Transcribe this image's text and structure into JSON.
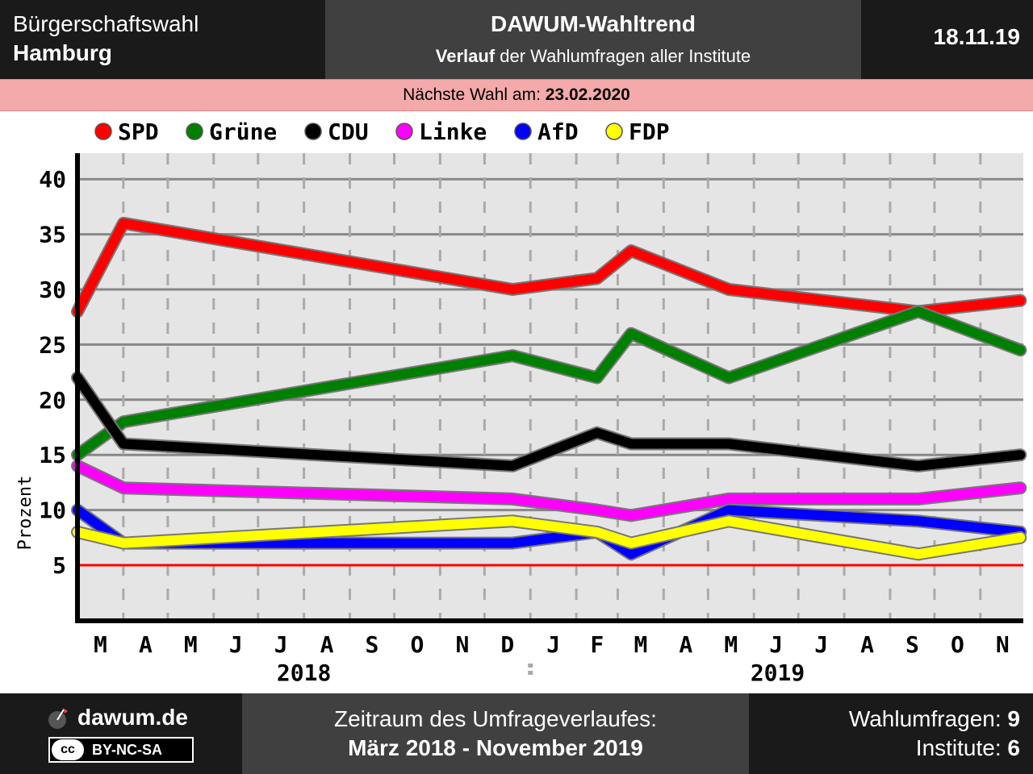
{
  "header": {
    "left_line1": "Bürgerschaftswahl",
    "left_line2": "Hamburg",
    "title": "DAWUM-Wahltrend",
    "subtitle_bold": "Verlauf",
    "subtitle_rest": " der Wahlumfragen aller Institute",
    "date": "18.11.19"
  },
  "next_election": {
    "label": "Nächste Wahl am: ",
    "date": "23.02.2020"
  },
  "footer": {
    "site": "dawum.de",
    "license": "BY-NC-SA",
    "license_icon": "cc",
    "period_label": "Zeitraum des Umfrageverlaufes:",
    "period": "März 2018 - November 2019",
    "polls_label": "Wahlumfragen: ",
    "polls_count": "9",
    "institutes_label": "Institute: ",
    "institutes_count": "6"
  },
  "chart_data": {
    "type": "line",
    "ylabel": "Prozent",
    "ylim": [
      0,
      42
    ],
    "yticks": [
      5,
      10,
      15,
      20,
      25,
      30,
      35,
      40
    ],
    "threshold": 5,
    "threshold_color": "#ff0000",
    "grid": true,
    "legend_position": "top",
    "x_range": [
      "2018-03-01",
      "2019-11-30"
    ],
    "months": [
      "M",
      "A",
      "M",
      "J",
      "J",
      "A",
      "S",
      "O",
      "N",
      "D",
      "J",
      "F",
      "M",
      "A",
      "M",
      "J",
      "J",
      "A",
      "S",
      "O",
      "N"
    ],
    "years": [
      {
        "label": "2018",
        "start_index": 0,
        "end_index": 9
      },
      {
        "label": "2019",
        "start_index": 10,
        "end_index": 20
      }
    ],
    "x": [
      "2018-03-01",
      "2018-04-01",
      "2018-12-20",
      "2019-02-15",
      "2019-03-10",
      "2019-05-15",
      "2019-09-20",
      "2019-11-28"
    ],
    "series": [
      {
        "name": "SPD",
        "color": "#ff0000",
        "values": [
          28,
          36,
          30,
          31,
          33.5,
          30,
          28,
          29
        ]
      },
      {
        "name": "Grüne",
        "color": "#008000",
        "values": [
          15,
          18,
          24,
          22,
          26,
          22,
          28,
          24.5
        ]
      },
      {
        "name": "CDU",
        "color": "#000000",
        "values": [
          22,
          16,
          14,
          17,
          16,
          16,
          14,
          15
        ]
      },
      {
        "name": "Linke",
        "color": "#ff00ff",
        "values": [
          14,
          12,
          11,
          10,
          9.5,
          11,
          11,
          12
        ]
      },
      {
        "name": "AfD",
        "color": "#0000ff",
        "values": [
          10,
          7,
          7,
          8,
          6,
          10,
          9,
          8
        ]
      },
      {
        "name": "FDP",
        "color": "#ffff00",
        "values": [
          8,
          7,
          9,
          8,
          7,
          9,
          6,
          7.5
        ]
      }
    ]
  }
}
